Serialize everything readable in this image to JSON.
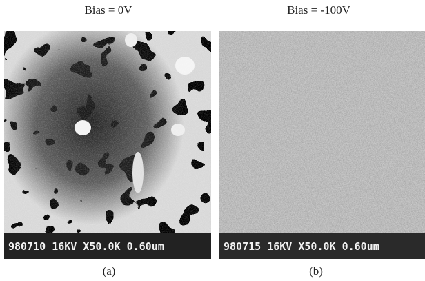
{
  "panels": [
    {
      "title": "Bias = 0V",
      "image_label": "980710 16KV X50.0K 0.60um",
      "caption": "(a)"
    },
    {
      "title": "Bias = -100V",
      "image_label": "980715 16KV X50.0K 0.60um",
      "caption": "(b)"
    }
  ]
}
